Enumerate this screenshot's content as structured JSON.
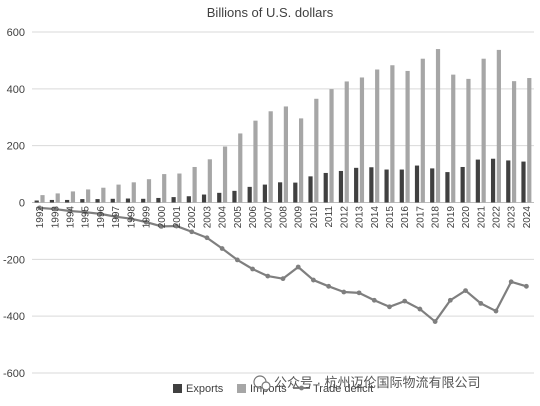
{
  "chart_data": {
    "type": "bar",
    "title": "Billions of U.S. dollars",
    "categories": [
      "1992",
      "1993",
      "1994",
      "1995",
      "1996",
      "1997",
      "1998",
      "1999",
      "2000",
      "2001",
      "2002",
      "2003",
      "2004",
      "2005",
      "2006",
      "2007",
      "2008",
      "2009",
      "2010",
      "2011",
      "2012",
      "2013",
      "2014",
      "2015",
      "2016",
      "2017",
      "2018",
      "2019",
      "2020",
      "2021",
      "2022",
      "2023",
      "2024"
    ],
    "ylim": [
      -600,
      600
    ],
    "yticks": [
      600,
      400,
      200,
      0,
      -200,
      -400,
      -600
    ],
    "grid": true,
    "legend_position": "bottom",
    "series": [
      {
        "name": "Exports",
        "kind": "bar",
        "color": "#404040",
        "values": [
          7,
          9,
          9,
          12,
          12,
          13,
          14,
          13,
          16,
          19,
          22,
          28,
          34,
          41,
          55,
          63,
          71,
          70,
          92,
          104,
          111,
          122,
          124,
          116,
          116,
          130,
          120,
          107,
          125,
          151,
          154,
          148,
          144
        ]
      },
      {
        "name": "Imports",
        "kind": "bar",
        "color": "#a6a6a6",
        "values": [
          26,
          32,
          39,
          46,
          52,
          63,
          71,
          82,
          100,
          102,
          125,
          152,
          197,
          243,
          288,
          321,
          338,
          296,
          365,
          399,
          426,
          440,
          468,
          483,
          463,
          506,
          540,
          450,
          435,
          506,
          537,
          427,
          438
        ]
      },
      {
        "name": "Trade deficit",
        "kind": "line",
        "color": "#7f7f7f",
        "values": [
          -19,
          -23,
          -30,
          -34,
          -40,
          -50,
          -57,
          -69,
          -84,
          -83,
          -103,
          -124,
          -162,
          -202,
          -234,
          -259,
          -268,
          -227,
          -273,
          -295,
          -315,
          -318,
          -344,
          -367,
          -347,
          -375,
          -419,
          -344,
          -310,
          -355,
          -382,
          -279,
          -295
        ]
      }
    ]
  },
  "watermark": "公众号 · 杭州迈伦国际物流有限公司"
}
